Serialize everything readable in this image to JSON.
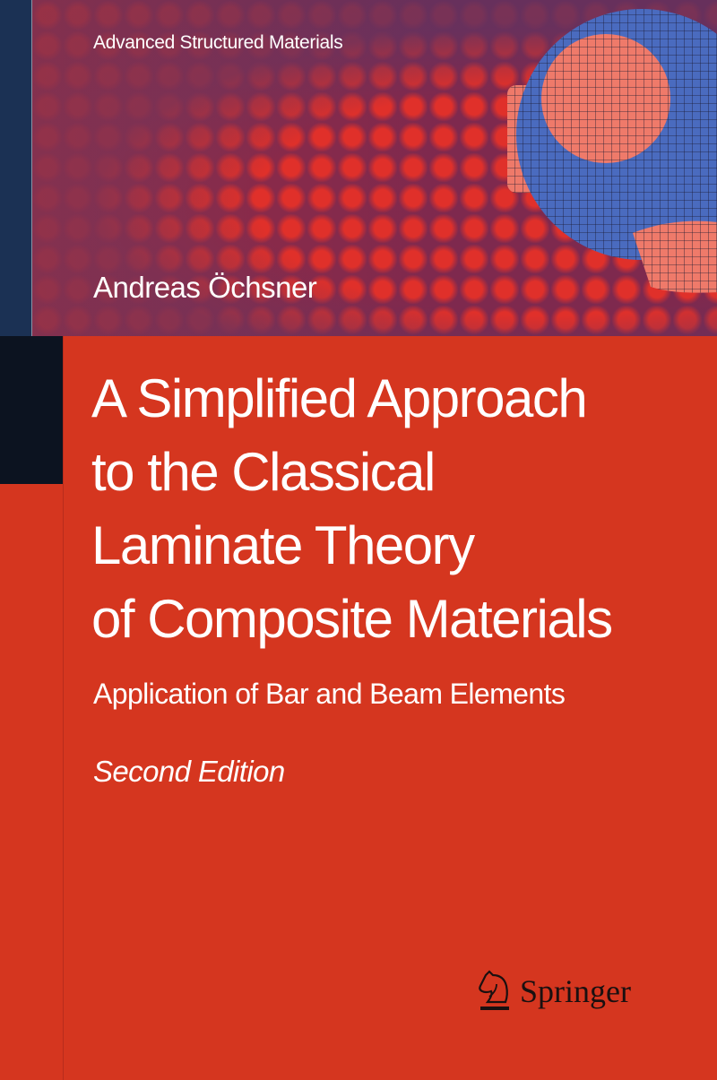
{
  "series": "Advanced Structured Materials",
  "author": "Andreas Öchsner",
  "title_lines": [
    "A Simplified Approach",
    "to the Classical",
    "Laminate Theory",
    "of Composite Materials"
  ],
  "subtitle": "Application of Bar and Beam Elements",
  "edition": "Second Edition",
  "publisher": {
    "name": "Springer",
    "icon": "chess-knight-icon"
  },
  "colors": {
    "cover_red": "#d5361f",
    "spine_navy": "#1b3154",
    "block_black": "#0c1320",
    "mesh_blue": "#4a6bbf",
    "mesh_salmon": "#ef7a6a"
  }
}
